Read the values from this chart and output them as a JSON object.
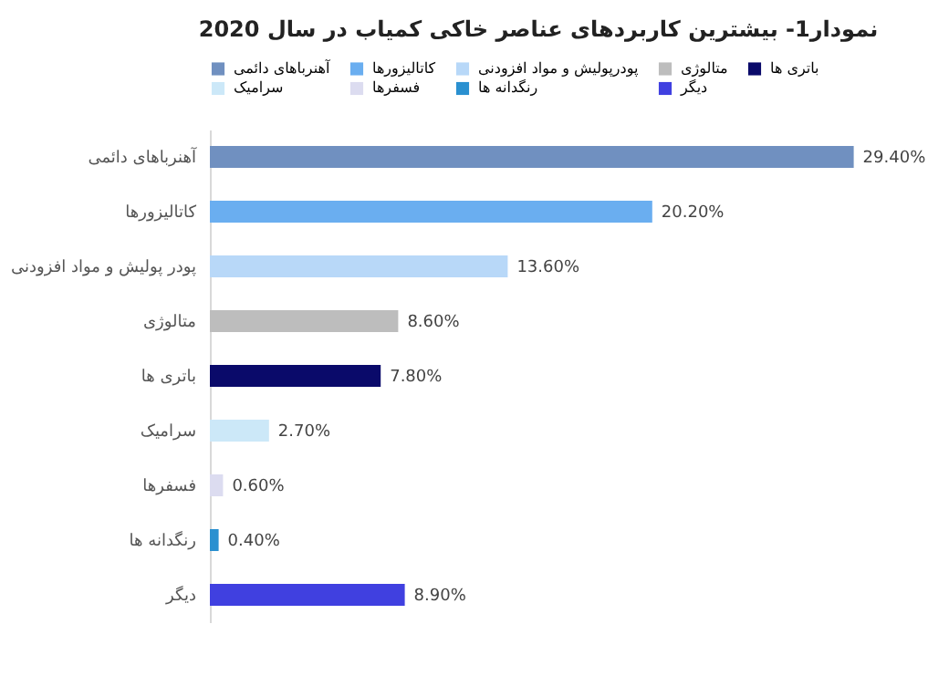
{
  "chart_data": {
    "type": "bar",
    "orientation": "horizontal",
    "title": "نمودار1- بیشترین کاربردهای عناصر خاکی کمیاب در سال 2020",
    "categories": [
      "آهنرباهای دائمی",
      "کاتالیزورها",
      "پودر پولیش و مواد افزودنی",
      "متالوژی",
      "باتری ها",
      "سرامیک",
      "فسفرها",
      "رنگدانه ها",
      "دیگر"
    ],
    "series": [
      {
        "name": "آهنرباهای دائمی",
        "color": "#7090c0",
        "values": [
          29.4,
          null,
          null,
          null,
          null,
          null,
          null,
          null,
          null
        ],
        "value_labels": [
          "29.40%",
          null,
          null,
          null,
          null,
          null,
          null,
          null,
          null
        ]
      },
      {
        "name": "کاتالیزورها",
        "color": "#6aaef0",
        "values": [
          null,
          20.2,
          null,
          null,
          null,
          null,
          null,
          null,
          null
        ],
        "value_labels": [
          null,
          "20.20%",
          null,
          null,
          null,
          null,
          null,
          null,
          null
        ]
      },
      {
        "name": "پودرپولیش و مواد افزودنی",
        "color": "#b8d8f8",
        "values": [
          null,
          null,
          13.6,
          null,
          null,
          null,
          null,
          null,
          null
        ],
        "value_labels": [
          null,
          null,
          "13.60%",
          null,
          null,
          null,
          null,
          null,
          null
        ]
      },
      {
        "name": "متالوژی",
        "color": "#bdbdbd",
        "values": [
          null,
          null,
          null,
          8.6,
          null,
          null,
          null,
          null,
          null
        ],
        "value_labels": [
          null,
          null,
          null,
          "8.60%",
          null,
          null,
          null,
          null,
          null
        ]
      },
      {
        "name": "باتری ها",
        "color": "#0a0a6a",
        "values": [
          null,
          null,
          null,
          null,
          7.8,
          null,
          null,
          null,
          null
        ],
        "value_labels": [
          null,
          null,
          null,
          null,
          "7.80%",
          null,
          null,
          null,
          null
        ]
      },
      {
        "name": "سرامیک",
        "color": "#cce8f8",
        "values": [
          null,
          null,
          null,
          null,
          null,
          2.7,
          null,
          null,
          null
        ],
        "value_labels": [
          null,
          null,
          null,
          null,
          null,
          "2.70%",
          null,
          null,
          null
        ]
      },
      {
        "name": "فسفرها",
        "color": "#dcdcf0",
        "values": [
          null,
          null,
          null,
          null,
          null,
          null,
          0.6,
          null,
          null
        ],
        "value_labels": [
          null,
          null,
          null,
          null,
          null,
          null,
          "0.60%",
          null,
          null
        ]
      },
      {
        "name": "رنگدانه ها",
        "color": "#2a90d0",
        "values": [
          null,
          null,
          null,
          null,
          null,
          null,
          null,
          0.4,
          null
        ],
        "value_labels": [
          null,
          null,
          null,
          null,
          null,
          null,
          null,
          "0.40%",
          null
        ]
      },
      {
        "name": "دیگر",
        "color": "#4040e0",
        "values": [
          null,
          null,
          null,
          null,
          null,
          null,
          null,
          null,
          8.9
        ],
        "value_labels": [
          null,
          null,
          null,
          null,
          null,
          null,
          null,
          null,
          "8.90%"
        ]
      }
    ],
    "legend": "top"
  }
}
